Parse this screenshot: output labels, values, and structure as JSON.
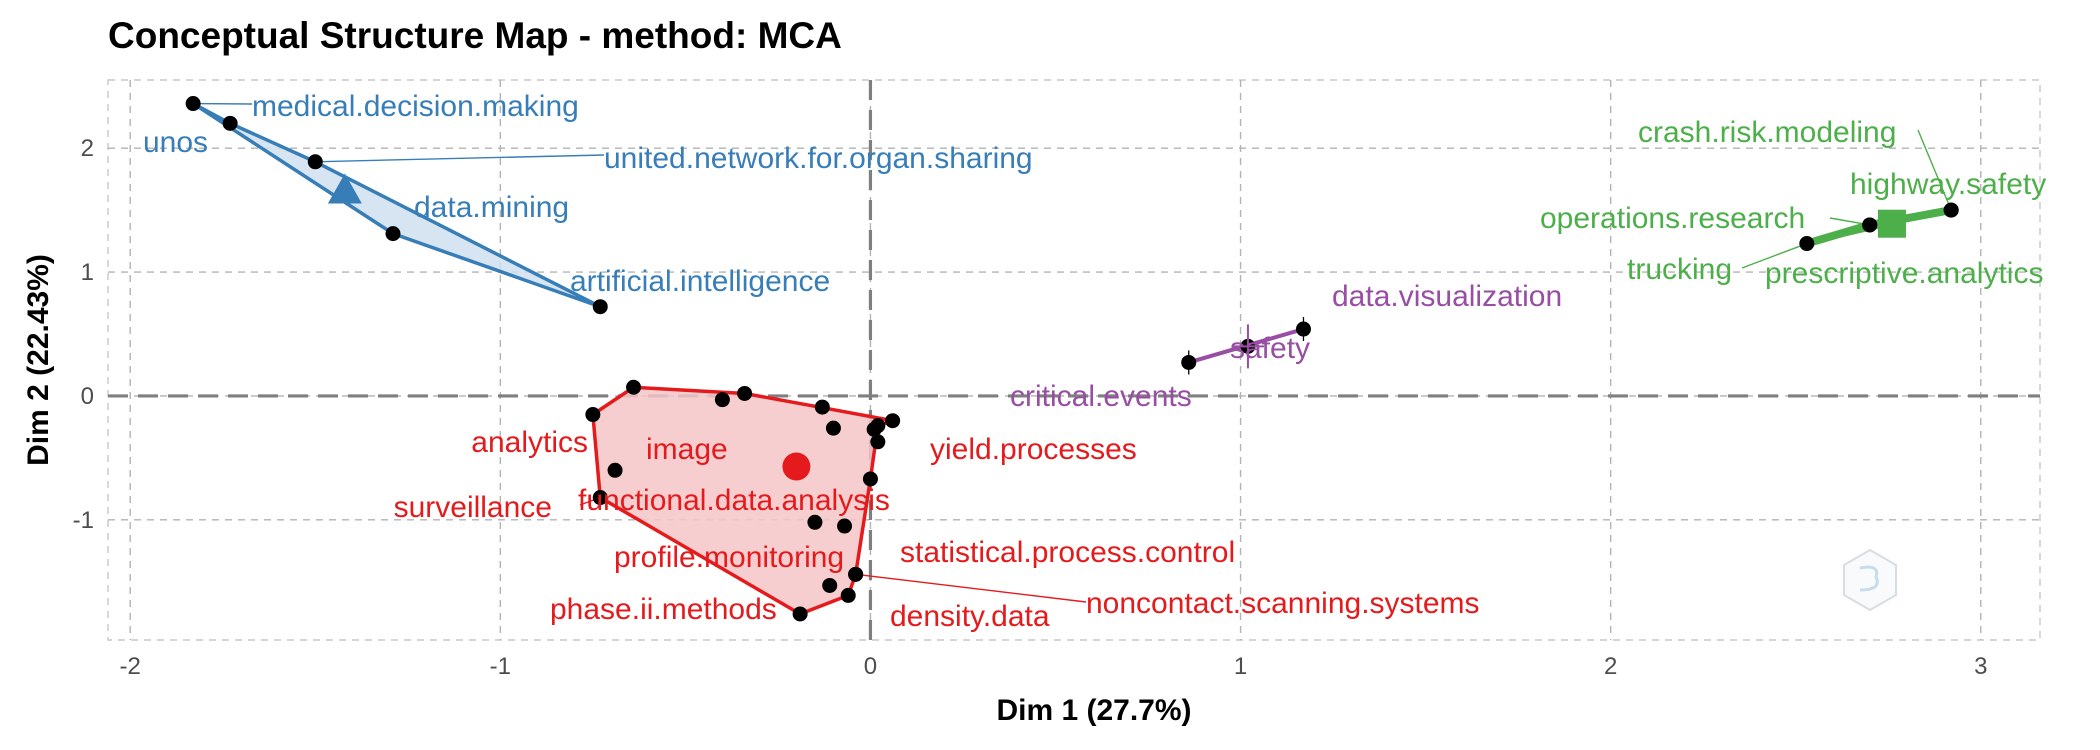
{
  "chart_data": {
    "type": "scatter",
    "title": "Conceptual Structure Map - method: MCA",
    "xlabel": "Dim 1 (27.7%)",
    "ylabel": "Dim 2 (22.43%)",
    "xlim": [
      -2.06,
      3.16
    ],
    "ylim": [
      -1.97,
      2.55
    ],
    "x_ticks": [
      -2,
      -1,
      0,
      1,
      2,
      3
    ],
    "y_ticks": [
      -1,
      0,
      1,
      2
    ],
    "grid": true,
    "legend": "none",
    "watermark_icon": "hexagon-logo-icon",
    "clusters": [
      {
        "id": "1",
        "color": "#e41a1c",
        "fill": "#f6c6c7",
        "centroid_marker": "circle",
        "centroid": [
          -0.2,
          -0.57
        ],
        "hull": [
          [
            -0.75,
            -0.15
          ],
          [
            -0.64,
            0.07
          ],
          [
            -0.34,
            0.02
          ],
          [
            -0.12,
            -0.1
          ],
          [
            0.06,
            -0.2
          ],
          [
            0.02,
            -0.24
          ],
          [
            0.0,
            -0.67
          ],
          [
            -0.04,
            -1.44
          ],
          [
            -0.06,
            -1.61
          ],
          [
            -0.19,
            -1.76
          ],
          [
            -0.73,
            -0.82
          ]
        ],
        "points": [
          {
            "label": "analytics",
            "x": -0.75,
            "y": -0.15
          },
          {
            "label": "",
            "x": -0.64,
            "y": 0.07
          },
          {
            "label": "",
            "x": -0.4,
            "y": -0.03
          },
          {
            "label": "",
            "x": -0.34,
            "y": 0.02
          },
          {
            "label": "",
            "x": -0.13,
            "y": -0.09
          },
          {
            "label": "",
            "x": -0.1,
            "y": -0.26
          },
          {
            "label": "",
            "x": 0.01,
            "y": -0.27
          },
          {
            "label": "",
            "x": 0.02,
            "y": -0.24
          },
          {
            "label": "",
            "x": 0.02,
            "y": -0.37
          },
          {
            "label": "yield.processes",
            "x": 0.06,
            "y": -0.2
          },
          {
            "label": "image",
            "x": -0.69,
            "y": -0.6
          },
          {
            "label": "surveillance",
            "x": -0.73,
            "y": -0.82
          },
          {
            "label": "functional.data.analysis",
            "x": 0.0,
            "y": -0.67
          },
          {
            "label": "",
            "x": -0.15,
            "y": -1.02
          },
          {
            "label": "profile.monitoring",
            "x": -0.07,
            "y": -1.05
          },
          {
            "label": "statistical.process.control",
            "x": -0.04,
            "y": -1.44
          },
          {
            "label": "",
            "x": -0.11,
            "y": -1.53
          },
          {
            "label": "density.data",
            "x": -0.06,
            "y": -1.61
          },
          {
            "label": "phase.ii.methods",
            "x": -0.19,
            "y": -1.76
          },
          {
            "label": "noncontact.scanning.systems",
            "x": -0.04,
            "y": -1.44
          }
        ]
      },
      {
        "id": "2",
        "color": "#377eb8",
        "fill": "#cfe0ef",
        "centroid_marker": "triangle",
        "centroid": [
          -1.42,
          1.65
        ],
        "hull": [
          [
            -1.83,
            2.36
          ],
          [
            -1.73,
            2.2
          ],
          [
            -1.5,
            1.89
          ],
          [
            -0.73,
            0.72
          ],
          [
            -1.29,
            1.31
          ]
        ],
        "points": [
          {
            "label": "medical.decision.making",
            "x": -1.83,
            "y": 2.36
          },
          {
            "label": "unos",
            "x": -1.73,
            "y": 2.2
          },
          {
            "label": "united.network.for.organ.sharing",
            "x": -1.5,
            "y": 1.89
          },
          {
            "label": "data.mining",
            "x": -1.29,
            "y": 1.31
          },
          {
            "label": "artificial.intelligence",
            "x": -0.73,
            "y": 0.72
          }
        ]
      },
      {
        "id": "3",
        "color": "#4daf4a",
        "fill": "#4daf4a",
        "centroid_marker": "square",
        "centroid": [
          2.76,
          1.39
        ],
        "hull": [
          [
            2.53,
            1.23
          ],
          [
            2.7,
            1.38
          ],
          [
            2.92,
            1.5
          ]
        ],
        "points": [
          {
            "label": "crash.risk.modeling",
            "x": 2.92,
            "y": 1.5
          },
          {
            "label": "highway.safety",
            "x": 2.92,
            "y": 1.5
          },
          {
            "label": "operations.research",
            "x": 2.7,
            "y": 1.38
          },
          {
            "label": "trucking",
            "x": 2.53,
            "y": 1.23
          },
          {
            "label": "prescriptive.analytics",
            "x": 2.7,
            "y": 1.38
          }
        ]
      },
      {
        "id": "4",
        "color": "#984ea3",
        "fill": "#984ea3",
        "centroid_marker": "plus",
        "centroid": [
          1.02,
          0.4
        ],
        "hull": [
          [
            0.86,
            0.27
          ],
          [
            1.17,
            0.54
          ]
        ],
        "points": [
          {
            "label": "data.visualization",
            "x": 1.17,
            "y": 0.54
          },
          {
            "label": "safety",
            "x": 1.02,
            "y": 0.4
          },
          {
            "label": "critical.events",
            "x": 0.86,
            "y": 0.27
          }
        ]
      }
    ]
  }
}
